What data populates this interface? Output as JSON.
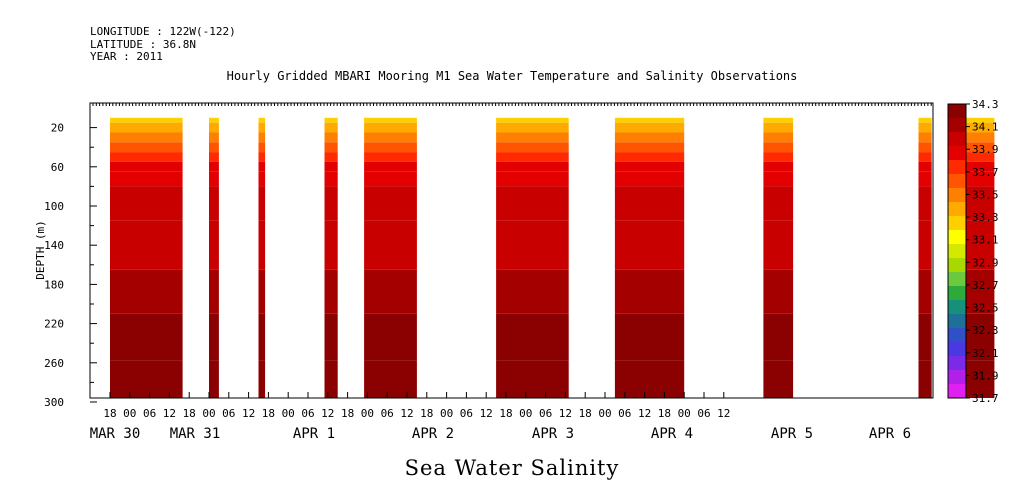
{
  "header": {
    "longitude": "LONGITUDE : 122W(-122)",
    "latitude": "LATITUDE : 36.8N",
    "year": "YEAR : 2011"
  },
  "chart_data": {
    "type": "heatmap",
    "title": "Hourly Gridded MBARI Mooring M1 Sea Water Temperature and Salinity Observations",
    "xlabel": "Sea Water Salinity",
    "ylabel": "DEPTH (m)",
    "ylim": [
      300,
      0
    ],
    "y_ticks": [
      20,
      60,
      100,
      140,
      180,
      220,
      260,
      300
    ],
    "x_hour_ticks": [
      "18",
      "00",
      "06",
      "12",
      "18",
      "00",
      "06",
      "12",
      "18",
      "00",
      "06",
      "12",
      "18",
      "00",
      "06",
      "12",
      "18",
      "00",
      "06",
      "12",
      "18",
      "00",
      "06",
      "12",
      "18",
      "00",
      "06",
      "12",
      "18",
      "00",
      "06",
      "12"
    ],
    "x_date_labels": [
      "MAR 30",
      "MAR 31",
      "APR 1",
      "APR 2",
      "APR 3",
      "APR 4",
      "APR 5",
      "APR 6"
    ],
    "colorbar": {
      "levels": [
        "34.3",
        "34.1",
        "33.9",
        "33.7",
        "33.5",
        "33.3",
        "33.1",
        "32.9",
        "32.7",
        "32.5",
        "32.3",
        "32.1",
        "31.9",
        "31.7"
      ],
      "colors": [
        "#8b0000",
        "#a50000",
        "#c80000",
        "#e20000",
        "#ff2a00",
        "#ff5500",
        "#ff8000",
        "#ffaa00",
        "#ffd000",
        "#ffff00",
        "#d4e800",
        "#a8d800",
        "#6cc83c",
        "#2eaa3c",
        "#16907a",
        "#1e7098",
        "#3050c8",
        "#4a38e0",
        "#7a2ae8",
        "#b020e8",
        "#e020f0"
      ]
    },
    "data_segments": [
      {
        "start_hour": 0,
        "end_hour": 22
      },
      {
        "start_hour": 30,
        "end_hour": 33
      },
      {
        "start_hour": 45,
        "end_hour": 47
      },
      {
        "start_hour": 65,
        "end_hour": 69
      },
      {
        "start_hour": 77,
        "end_hour": 93
      },
      {
        "start_hour": 117,
        "end_hour": 139
      },
      {
        "start_hour": 153,
        "end_hour": 174
      },
      {
        "start_hour": 198,
        "end_hour": 207
      },
      {
        "start_hour": 245,
        "end_hour": 249
      },
      {
        "start_hour": 259,
        "end_hour": 268
      }
    ],
    "depth_profile": [
      {
        "depth": 10,
        "salinity": 33.2
      },
      {
        "depth": 20,
        "salinity": 33.35
      },
      {
        "depth": 30,
        "salinity": 33.55
      },
      {
        "depth": 40,
        "salinity": 33.7
      },
      {
        "depth": 50,
        "salinity": 33.8
      },
      {
        "depth": 60,
        "salinity": 33.85
      },
      {
        "depth": 70,
        "salinity": 33.95
      },
      {
        "depth": 90,
        "salinity": 34.0
      },
      {
        "depth": 140,
        "salinity": 34.05
      },
      {
        "depth": 190,
        "salinity": 34.15
      },
      {
        "depth": 230,
        "salinity": 34.25
      },
      {
        "depth": 285,
        "salinity": 34.35
      }
    ]
  }
}
